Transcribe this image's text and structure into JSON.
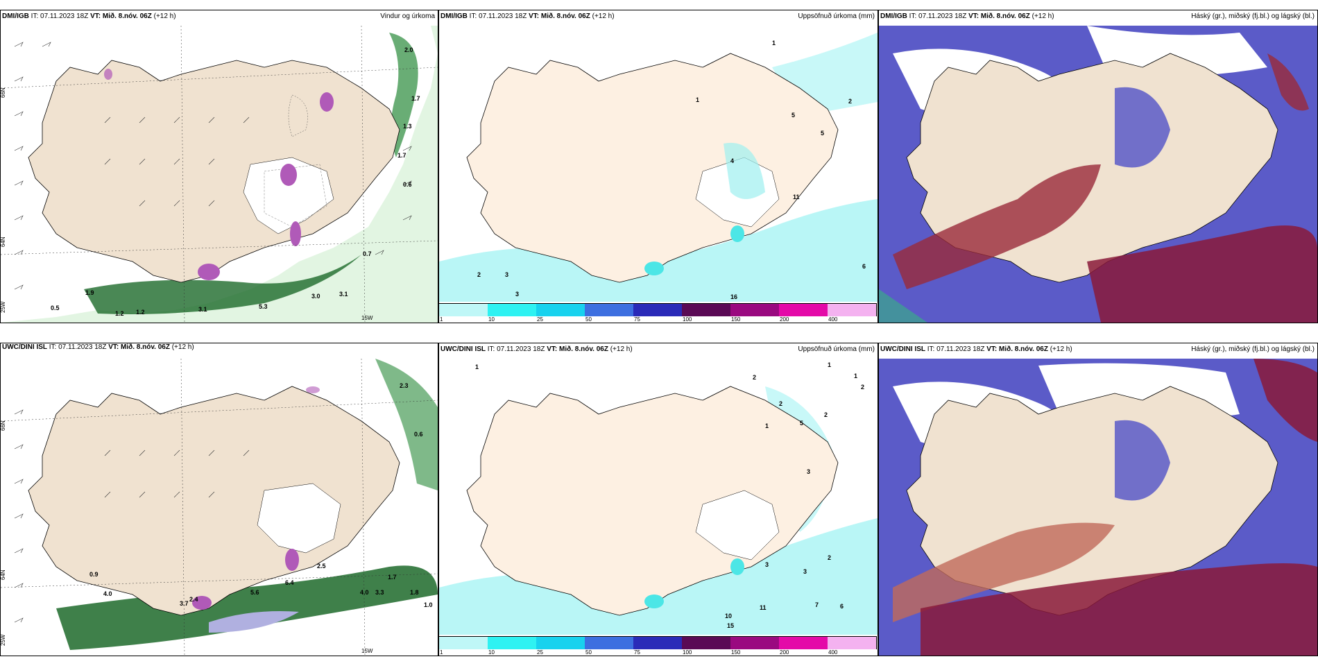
{
  "panels": {
    "p1": {
      "left_title": "DMI/IGB",
      "it_label": "IT: 07.11.2023 18Z",
      "vt_label": "VT: Mið. 8.nóv. 06Z",
      "lead": "(+12 h)",
      "right_title": "Vindur og úrkoma"
    },
    "p2": {
      "left_title": "DMI/IGB",
      "it_label": "IT: 07.11.2023 18Z",
      "vt_label": "VT: Mið. 8.nóv. 06Z",
      "lead": "(+12 h)",
      "right_title": "Uppsöfnuð úrkoma (mm)"
    },
    "p3": {
      "left_title": "DMI/IGB",
      "it_label": "IT: 07.11.2023 18Z",
      "vt_label": "VT: Mið. 8.nóv. 06Z",
      "lead": "(+12 h)",
      "right_title": "Háský (gr.), miðský (fj.bl.) og lágský (bl.)"
    },
    "p4": {
      "left_title": "UWC/DINI ISL",
      "it_label": "IT: 07.11.2023 18Z",
      "vt_label": "VT: Mið. 8.nóv. 06Z",
      "lead": "(+12 h)",
      "right_title": ""
    },
    "p5": {
      "left_title": "UWC/DINI ISL",
      "it_label": "IT: 07.11.2023 18Z",
      "vt_label": "VT: Mið. 8.nóv. 06Z",
      "lead": "(+12 h)",
      "right_title": "Uppsöfnuð úrkoma (mm)"
    },
    "p6": {
      "left_title": "UWC/DINI ISL",
      "it_label": "IT: 07.11.2023 18Z",
      "vt_label": "VT: Mið. 8.nóv. 06Z",
      "lead": "(+12 h)",
      "right_title": "Háský (gr.), miðský (fj.bl.) og lágský (bl.)"
    }
  },
  "lat_labels": [
    "66N",
    "64N",
    "25W",
    "15W"
  ],
  "colorbar": {
    "labels": [
      "1",
      "10",
      "25",
      "50",
      "75",
      "100",
      "150",
      "200",
      "400"
    ],
    "colors": [
      "#bff7f7",
      "#2ef2f2",
      "#18d2ee",
      "#3d6fe0",
      "#2a2ab8",
      "#5a0a55",
      "#9a0a80",
      "#e40aa8",
      "#f4b2f0"
    ]
  },
  "wind_labels_top": [
    "2.0",
    "1.7",
    "1.3",
    "0.6",
    "0.7",
    "1.9",
    "0.5",
    "3.1",
    "5.3",
    "3.0",
    "3.1",
    "1.2",
    "1.2",
    "1.7"
  ],
  "wind_labels_bottom": [
    "2.3",
    "0.6",
    "0.9",
    "4.0",
    "3.7",
    "2.4",
    "5.6",
    "6.4",
    "2.5",
    "1.7",
    "1.0",
    "4.0",
    "3.3",
    "1.8"
  ],
  "precip_labels_top": [
    "1",
    "1",
    "4",
    "3",
    "2",
    "5",
    "5",
    "11",
    "2",
    "3",
    "16",
    "6"
  ],
  "precip_labels_bottom": [
    "1",
    "1",
    "1",
    "2",
    "2",
    "1",
    "2",
    "2",
    "5",
    "3",
    "10",
    "15",
    "11",
    "7",
    "6",
    "3",
    "3",
    "2"
  ]
}
